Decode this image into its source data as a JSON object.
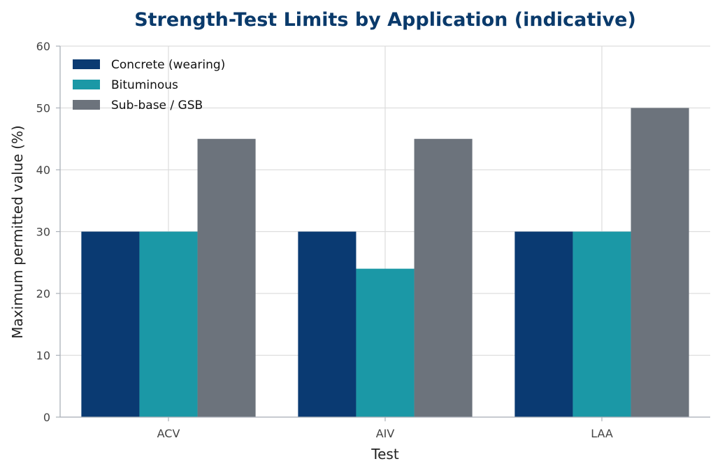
{
  "chart_data": {
    "type": "bar",
    "title": "Strength-Test Limits by Application (indicative)",
    "xlabel": "Test",
    "ylabel": "Maximum permitted value (%)",
    "categories": [
      "ACV",
      "AIV",
      "LAA"
    ],
    "ylim": [
      0,
      60
    ],
    "yticks": [
      0,
      10,
      20,
      30,
      40,
      50,
      60
    ],
    "grid": true,
    "legend_position": "top-left",
    "series": [
      {
        "name": "Concrete (wearing)",
        "values": [
          30,
          30,
          30
        ],
        "color": "#0a3a72"
      },
      {
        "name": "Bituminous",
        "values": [
          30,
          24,
          30
        ],
        "color": "#1b98a6"
      },
      {
        "name": "Sub-base / GSB",
        "values": [
          45,
          45,
          50
        ],
        "color": "#6c737c"
      }
    ]
  },
  "colors": {
    "title": "#0a3a6b",
    "grid": "#dddddd",
    "axis": "#aab0b8"
  }
}
